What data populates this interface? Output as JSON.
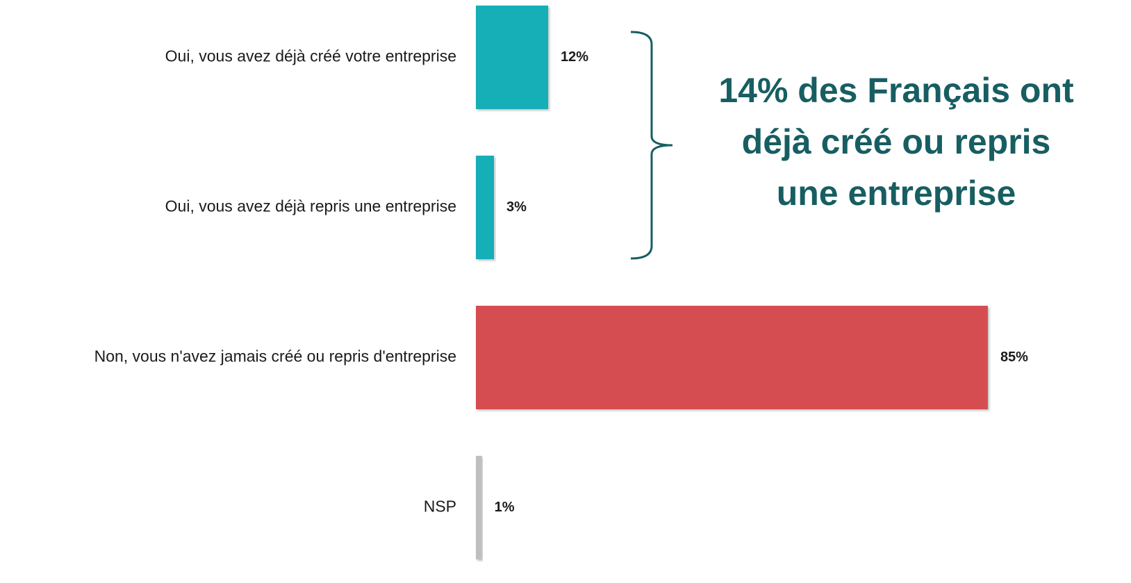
{
  "chart_data": {
    "type": "hbar",
    "categories": [
      "Oui, vous avez déjà créé votre entreprise",
      "Oui, vous avez déjà repris une entreprise",
      "Non, vous n'avez jamais créé ou repris d'entreprise",
      "NSP"
    ],
    "values": [
      12,
      3,
      85,
      1
    ],
    "value_labels": [
      "12%",
      "3%",
      "85%",
      "1%"
    ],
    "colors": [
      "#16afb7",
      "#16afb7",
      "#d64d51",
      "#bfbfbf"
    ],
    "annotation": [
      "14% des Français ont",
      "déjà créé ou repris",
      "une entreprise"
    ],
    "annotation_color": "#175e62"
  }
}
